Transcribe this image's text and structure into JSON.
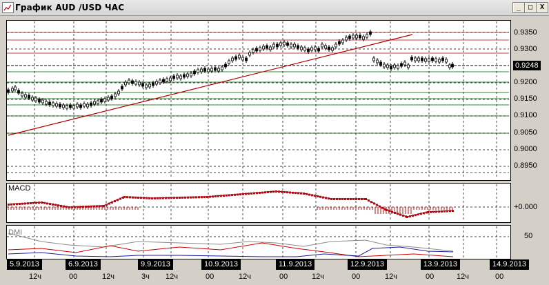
{
  "window": {
    "title": "График AUD /USD ЧАС",
    "buttons": [
      "_",
      "□",
      "X"
    ]
  },
  "main_chart": {
    "price_labels": [
      "0.9350",
      "0.9300",
      "0.9200",
      "0.9150",
      "0.9100",
      "0.9050",
      "0.9000",
      "0.8950"
    ],
    "current_price": "0.9248",
    "colors": {
      "candle": "#000000",
      "trendline": "#b00000",
      "red_levels": "#c84040",
      "green_levels": "#2a8a2a",
      "grid": "#000000"
    }
  },
  "macd": {
    "label": "MACD",
    "zero_label": "+0.000",
    "colors": {
      "signal": "#cc0000",
      "line": "#1a1a80"
    }
  },
  "dmi": {
    "label": "DMI",
    "level_label": "50",
    "colors": {
      "adx": "#8a8a8a",
      "plus": "#cc0000",
      "minus": "#1a1a9a"
    }
  },
  "time_axis": {
    "dates": [
      "5.9.2013",
      "6.9.2013",
      "9.9.2013",
      "10.9.2013",
      "11.9.2013",
      "12.9.2013",
      "13.9.2013",
      "14.9.2013"
    ],
    "hours": [
      "12ч",
      "00",
      "12ч",
      "3ч",
      "12ч",
      "00",
      "12ч",
      "00",
      "12ч",
      "00",
      "12ч",
      "00",
      "12ч",
      "00"
    ]
  }
}
